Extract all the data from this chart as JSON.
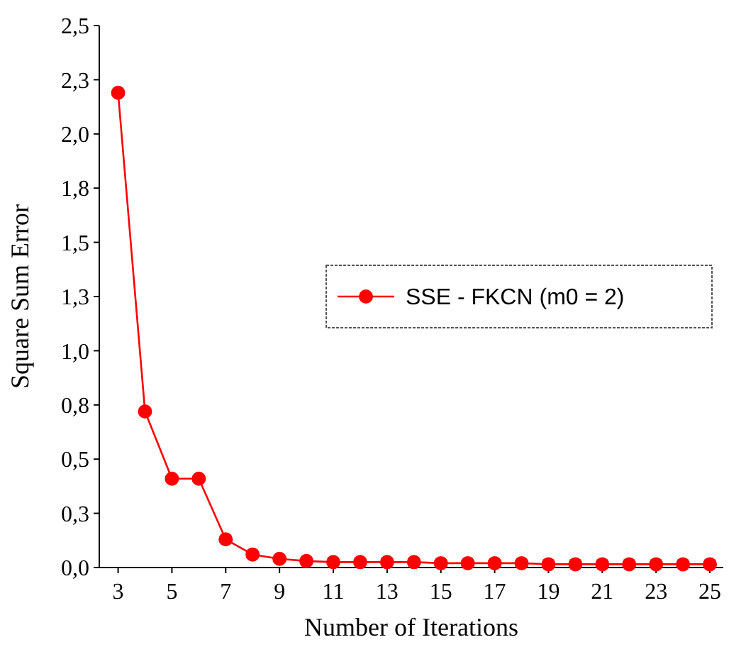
{
  "chart_data": {
    "type": "line",
    "xlabel": "Number of Iterations",
    "ylabel": "Square Sum Error",
    "x": [
      3,
      4,
      5,
      6,
      7,
      8,
      9,
      10,
      11,
      12,
      13,
      14,
      15,
      16,
      17,
      18,
      19,
      20,
      21,
      22,
      23,
      24,
      25
    ],
    "series": [
      {
        "name": "SSE - FKCN (m0 = 2)",
        "color": "#ff0000",
        "values": [
          2.19,
          0.72,
          0.41,
          0.41,
          0.13,
          0.06,
          0.04,
          0.03,
          0.025,
          0.025,
          0.025,
          0.025,
          0.02,
          0.02,
          0.02,
          0.02,
          0.015,
          0.015,
          0.015,
          0.015,
          0.015,
          0.015,
          0.015
        ]
      }
    ],
    "xlim": [
      2.3,
      25.5
    ],
    "xticks": [
      3,
      5,
      7,
      9,
      11,
      13,
      15,
      17,
      19,
      21,
      23,
      25
    ],
    "ylim": [
      0,
      2.5
    ],
    "yticks": [
      {
        "value": 0,
        "label": "0,0"
      },
      {
        "value": 0.25,
        "label": "0,3"
      },
      {
        "value": 0.5,
        "label": "0,5"
      },
      {
        "value": 0.75,
        "label": "0,8"
      },
      {
        "value": 1,
        "label": "1,0"
      },
      {
        "value": 1.25,
        "label": "1,3"
      },
      {
        "value": 1.5,
        "label": "1,5"
      },
      {
        "value": 1.75,
        "label": "1,8"
      },
      {
        "value": 2,
        "label": "2,0"
      },
      {
        "value": 2.25,
        "label": "2,3"
      },
      {
        "value": 2.5,
        "label": "2,5"
      }
    ],
    "grid": false,
    "legend": "right",
    "marker": "circle",
    "line_style": "solid"
  }
}
